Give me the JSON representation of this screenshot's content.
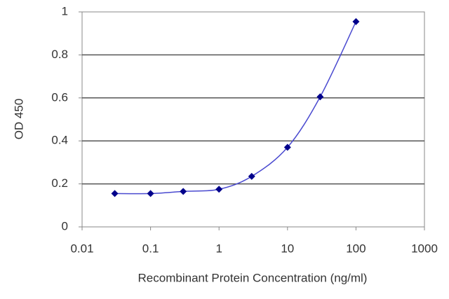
{
  "chart_data": {
    "type": "line",
    "xlabel": "Recombinant Protein Concentration (ng/ml)",
    "ylabel": "OD 450",
    "x": [
      0.03,
      0.1,
      0.3,
      1,
      3,
      10,
      30,
      100
    ],
    "values": [
      0.155,
      0.155,
      0.165,
      0.175,
      0.235,
      0.37,
      0.605,
      0.955
    ],
    "color": "#00008b",
    "line_color": "#4a4ad0",
    "xscale": "log",
    "xlim": [
      0.01,
      1000
    ],
    "xticks": [
      0.01,
      0.1,
      1,
      10,
      100,
      1000
    ],
    "ylim": [
      0,
      1
    ],
    "yticks": [
      0,
      0.2,
      0.4,
      0.6,
      0.8,
      1
    ],
    "grid": true
  }
}
